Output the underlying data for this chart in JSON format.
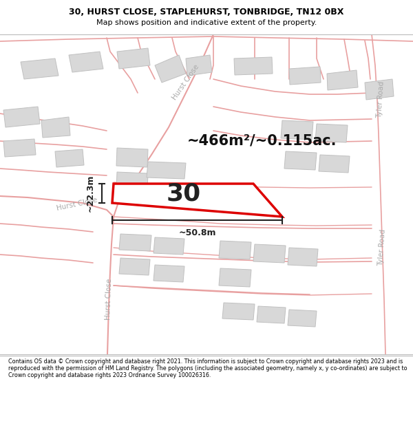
{
  "title_line1": "30, HURST CLOSE, STAPLEHURST, TONBRIDGE, TN12 0BX",
  "title_line2": "Map shows position and indicative extent of the property.",
  "footer_text": "Contains OS data © Crown copyright and database right 2021. This information is subject to Crown copyright and database rights 2023 and is reproduced with the permission of HM Land Registry. The polygons (including the associated geometry, namely x, y co-ordinates) are subject to Crown copyright and database rights 2023 Ordnance Survey 100026316.",
  "area_label": "~466m²/~0.115ac.",
  "number_label": "30",
  "dim_width": "~50.8m",
  "dim_height": "~22.3m",
  "map_bg": "#f7f5f5",
  "road_fill": "#ffffff",
  "road_edge": "#e8a0a0",
  "building_fill": "#d8d8d8",
  "building_edge": "#c0c0c0",
  "plot_fill": "#ffffff",
  "plot_edge": "#dd0000",
  "road_label_color": "#aaaaaa",
  "header_bg": "#ffffff",
  "footer_bg": "#ffffff",
  "dim_color": "#222222",
  "number_color": "#222222",
  "area_color": "#111111"
}
